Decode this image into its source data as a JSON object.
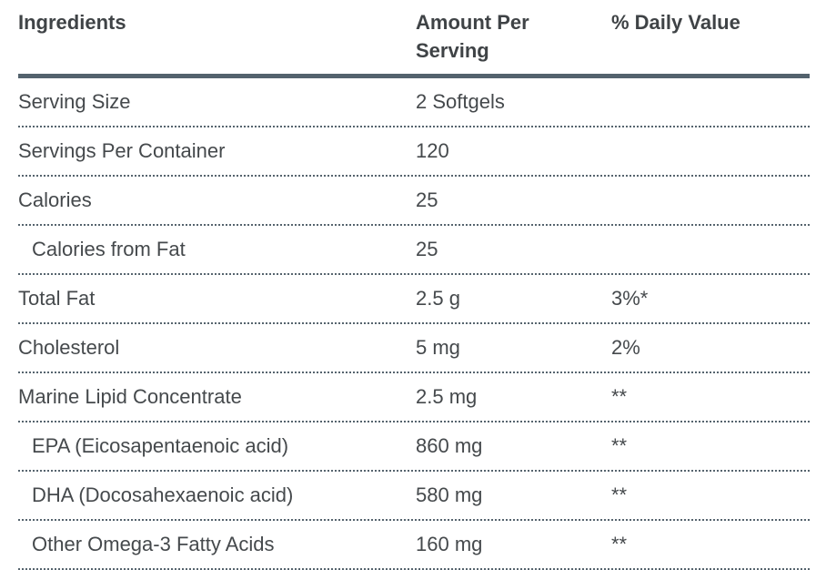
{
  "table": {
    "columns": [
      {
        "label": "Ingredients"
      },
      {
        "label": "Amount Per Serving"
      },
      {
        "label": "% Daily Value"
      }
    ],
    "rows": [
      {
        "ingredient": "Serving Size",
        "amount": "2 Softgels",
        "daily_value": "",
        "indent": false
      },
      {
        "ingredient": "Servings Per Container",
        "amount": "120",
        "daily_value": "",
        "indent": false
      },
      {
        "ingredient": "Calories",
        "amount": "25",
        "daily_value": "",
        "indent": false
      },
      {
        "ingredient": "Calories from Fat",
        "amount": "25",
        "daily_value": "",
        "indent": true
      },
      {
        "ingredient": "Total Fat",
        "amount": "2.5 g",
        "daily_value": "3%*",
        "indent": false
      },
      {
        "ingredient": "Cholesterol",
        "amount": "5 mg",
        "daily_value": "2%",
        "indent": false
      },
      {
        "ingredient": "Marine Lipid Concentrate",
        "amount": "2.5 mg",
        "daily_value": "**",
        "indent": false
      },
      {
        "ingredient": "EPA (Eicosapentaenoic acid)",
        "amount": "860 mg",
        "daily_value": "**",
        "indent": true
      },
      {
        "ingredient": "DHA (Docosahexaenoic acid)",
        "amount": "580 mg",
        "daily_value": "**",
        "indent": true
      },
      {
        "ingredient": "Other Omega-3 Fatty Acids",
        "amount": "160 mg",
        "daily_value": "**",
        "indent": true
      }
    ]
  },
  "colors": {
    "background": "#ffffff",
    "header_text": "#3f4346",
    "body_text": "#45494c",
    "thick_rule": "#53626d",
    "dotted_rule": "#56646e"
  }
}
